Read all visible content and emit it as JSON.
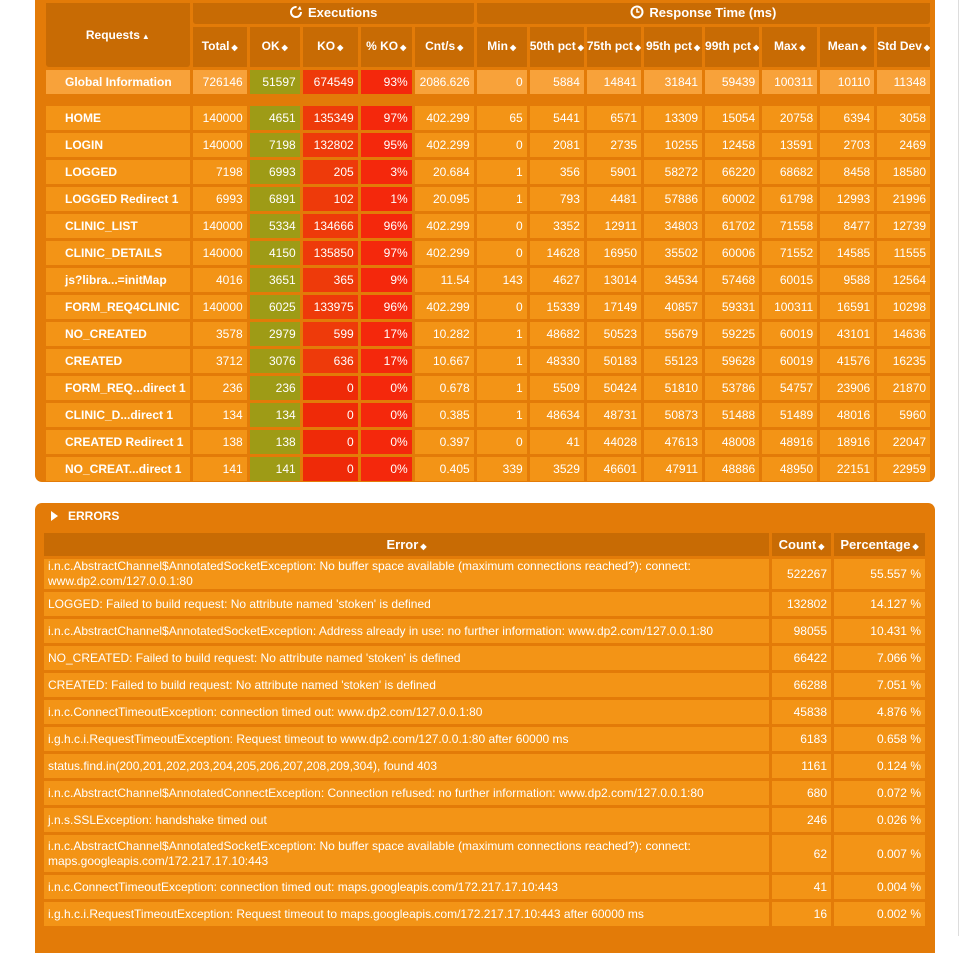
{
  "headers": {
    "requests": "Requests",
    "executions": "Executions",
    "response_time": "Response Time (ms)",
    "cols": [
      "Total",
      "OK",
      "KO",
      "% KO",
      "Cnt/s",
      "Min",
      "50th pct",
      "75th pct",
      "95th pct",
      "99th pct",
      "Max",
      "Mean",
      "Std Dev"
    ]
  },
  "global": {
    "name": "Global Information",
    "values": [
      "726146",
      "51597",
      "674549",
      "93%",
      "2086.626",
      "0",
      "5884",
      "14841",
      "31841",
      "59439",
      "100311",
      "10110",
      "11348"
    ]
  },
  "rows": [
    {
      "name": "HOME",
      "values": [
        "140000",
        "4651",
        "135349",
        "97%",
        "402.299",
        "65",
        "5441",
        "6571",
        "13309",
        "15054",
        "20758",
        "6394",
        "3058"
      ]
    },
    {
      "name": "LOGIN",
      "values": [
        "140000",
        "7198",
        "132802",
        "95%",
        "402.299",
        "0",
        "2081",
        "2735",
        "10255",
        "12458",
        "13591",
        "2703",
        "2469"
      ]
    },
    {
      "name": "LOGGED",
      "values": [
        "7198",
        "6993",
        "205",
        "3%",
        "20.684",
        "1",
        "356",
        "5901",
        "58272",
        "66220",
        "68682",
        "8458",
        "18580"
      ]
    },
    {
      "name": "LOGGED Redirect 1",
      "values": [
        "6993",
        "6891",
        "102",
        "1%",
        "20.095",
        "1",
        "793",
        "4481",
        "57886",
        "60002",
        "61798",
        "12993",
        "21996"
      ]
    },
    {
      "name": "CLINIC_LIST",
      "values": [
        "140000",
        "5334",
        "134666",
        "96%",
        "402.299",
        "0",
        "3352",
        "12911",
        "34803",
        "61702",
        "71558",
        "8477",
        "12739"
      ]
    },
    {
      "name": "CLINIC_DETAILS",
      "values": [
        "140000",
        "4150",
        "135850",
        "97%",
        "402.299",
        "0",
        "14628",
        "16950",
        "35502",
        "60006",
        "71552",
        "14585",
        "11555"
      ]
    },
    {
      "name": "js?libra...=initMap",
      "values": [
        "4016",
        "3651",
        "365",
        "9%",
        "11.54",
        "143",
        "4627",
        "13014",
        "34534",
        "57468",
        "60015",
        "9588",
        "12564"
      ]
    },
    {
      "name": "FORM_REQ4CLINIC",
      "values": [
        "140000",
        "6025",
        "133975",
        "96%",
        "402.299",
        "0",
        "15339",
        "17149",
        "40857",
        "59331",
        "100311",
        "16591",
        "10298"
      ]
    },
    {
      "name": "NO_CREATED",
      "values": [
        "3578",
        "2979",
        "599",
        "17%",
        "10.282",
        "1",
        "48682",
        "50523",
        "55679",
        "59225",
        "60019",
        "43101",
        "14636"
      ]
    },
    {
      "name": "CREATED",
      "values": [
        "3712",
        "3076",
        "636",
        "17%",
        "10.667",
        "1",
        "48330",
        "50183",
        "55123",
        "59628",
        "60019",
        "41576",
        "16235"
      ]
    },
    {
      "name": "FORM_REQ...direct 1",
      "values": [
        "236",
        "236",
        "0",
        "0%",
        "0.678",
        "1",
        "5509",
        "50424",
        "51810",
        "53786",
        "54757",
        "23906",
        "21870"
      ]
    },
    {
      "name": "CLINIC_D...direct 1",
      "values": [
        "134",
        "134",
        "0",
        "0%",
        "0.385",
        "1",
        "48634",
        "48731",
        "50873",
        "51488",
        "51489",
        "48016",
        "5960"
      ]
    },
    {
      "name": "CREATED Redirect 1",
      "values": [
        "138",
        "138",
        "0",
        "0%",
        "0.397",
        "0",
        "41",
        "44028",
        "47613",
        "48008",
        "48916",
        "18916",
        "22047"
      ]
    },
    {
      "name": "NO_CREAT...direct 1",
      "values": [
        "141",
        "141",
        "0",
        "0%",
        "0.405",
        "339",
        "3529",
        "46601",
        "47911",
        "48886",
        "48950",
        "22151",
        "22959"
      ]
    }
  ],
  "errors": {
    "title": "ERRORS",
    "cols": [
      "Error",
      "Count",
      "Percentage"
    ],
    "rows": [
      {
        "message": "i.n.c.AbstractChannel$AnnotatedSocketException: No buffer space available (maximum connections reached?): connect: www.dp2.com/127.0.0.1:80",
        "count": "522267",
        "pct": "55.557 %"
      },
      {
        "message": "LOGGED: Failed to build request: No attribute named 'stoken' is defined",
        "count": "132802",
        "pct": "14.127 %"
      },
      {
        "message": "i.n.c.AbstractChannel$AnnotatedSocketException: Address already in use: no further information: www.dp2.com/127.0.0.1:80",
        "count": "98055",
        "pct": "10.431 %"
      },
      {
        "message": "NO_CREATED: Failed to build request: No attribute named 'stoken' is defined",
        "count": "66422",
        "pct": "7.066 %"
      },
      {
        "message": "CREATED: Failed to build request: No attribute named 'stoken' is defined",
        "count": "66288",
        "pct": "7.051 %"
      },
      {
        "message": "i.n.c.ConnectTimeoutException: connection timed out: www.dp2.com/127.0.0.1:80",
        "count": "45838",
        "pct": "4.876 %"
      },
      {
        "message": "i.g.h.c.i.RequestTimeoutException: Request timeout to www.dp2.com/127.0.0.1:80 after 60000 ms",
        "count": "6183",
        "pct": "0.658 %"
      },
      {
        "message": "status.find.in(200,201,202,203,204,205,206,207,208,209,304), found 403",
        "count": "1161",
        "pct": "0.124 %"
      },
      {
        "message": "i.n.c.AbstractChannel$AnnotatedConnectException: Connection refused: no further information: www.dp2.com/127.0.0.1:80",
        "count": "680",
        "pct": "0.072 %"
      },
      {
        "message": "j.n.s.SSLException: handshake timed out",
        "count": "246",
        "pct": "0.026 %"
      },
      {
        "message": "i.n.c.AbstractChannel$AnnotatedSocketException: No buffer space available (maximum connections reached?): connect: maps.googleapis.com/172.217.17.10:443",
        "count": "62",
        "pct": "0.007 %"
      },
      {
        "message": "i.n.c.ConnectTimeoutException: connection timed out: maps.googleapis.com/172.217.17.10:443",
        "count": "41",
        "pct": "0.004 %"
      },
      {
        "message": "i.g.h.c.i.RequestTimeoutException: Request timeout to maps.googleapis.com/172.217.17.10:443 after 60000 ms",
        "count": "16",
        "pct": "0.002 %"
      }
    ]
  },
  "colors": {
    "panel": "#e37b08",
    "header": "#c86b04",
    "cell": "#f39416",
    "ok": "#a6b31c",
    "ko": "#ee3a0a"
  },
  "icons": {
    "executions": "refresh-icon",
    "response_time": "clock-icon",
    "sort": "sort-arrows-icon",
    "errors": "expand-triangle-icon"
  }
}
